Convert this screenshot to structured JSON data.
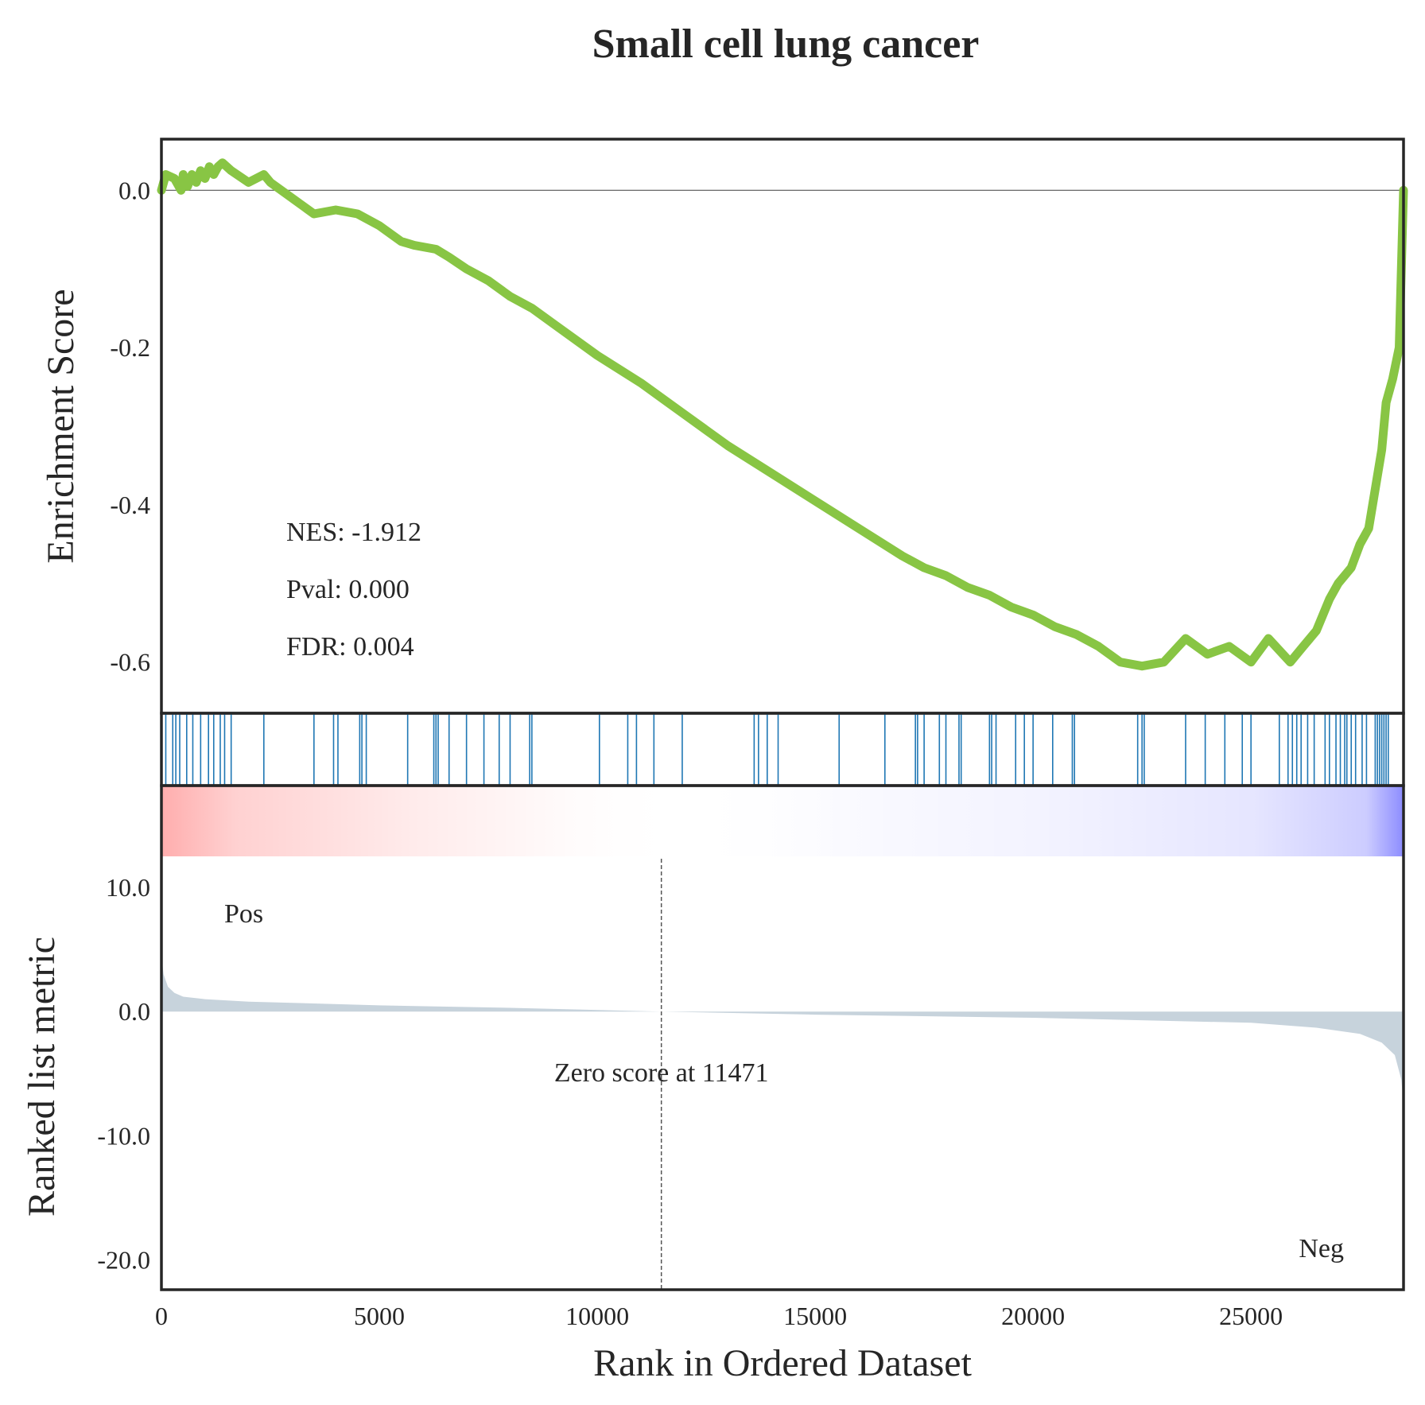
{
  "chart_data": {
    "type": "line",
    "title": "Small cell lung cancer",
    "xlabel": "Rank in Ordered Dataset",
    "es_panel": {
      "ylabel": "Enrichment Score",
      "xlim": [
        0,
        28500
      ],
      "ylim": [
        -0.665,
        0.065
      ],
      "yticks": [
        0.0,
        -0.2,
        -0.4,
        -0.6
      ],
      "ytick_labels": [
        "0.0",
        "-0.2",
        "-0.4",
        "-0.6"
      ],
      "line_color": "#88c544",
      "zero_line": true,
      "series": [
        {
          "x": [
            0,
            100,
            300,
            450,
            500,
            600,
            700,
            800,
            900,
            1000,
            1100,
            1200,
            1300,
            1400,
            1600,
            2000,
            2350,
            2500,
            3000,
            3500,
            4000,
            4500,
            5000,
            5500,
            5800,
            6300,
            6600,
            7000,
            7500,
            8000,
            8500,
            9000,
            10000,
            11000,
            12000,
            13000,
            14000,
            15000,
            16000,
            17000,
            17500,
            18000,
            18500,
            19000,
            19500,
            20000,
            20500,
            21000,
            21500,
            22000,
            22500,
            23000,
            23500,
            24000,
            24500,
            25000,
            25400,
            25900,
            26200,
            26500,
            26800,
            27000,
            27300,
            27500,
            27700,
            27850,
            28000,
            28100,
            28250,
            28400,
            28500
          ],
          "y": [
            0.0,
            0.02,
            0.015,
            0.0,
            0.02,
            0.005,
            0.02,
            0.01,
            0.025,
            0.015,
            0.03,
            0.02,
            0.03,
            0.035,
            0.025,
            0.01,
            0.02,
            0.01,
            -0.01,
            -0.03,
            -0.025,
            -0.03,
            -0.045,
            -0.065,
            -0.07,
            -0.075,
            -0.085,
            -0.1,
            -0.115,
            -0.135,
            -0.15,
            -0.17,
            -0.21,
            -0.245,
            -0.285,
            -0.325,
            -0.36,
            -0.395,
            -0.43,
            -0.465,
            -0.48,
            -0.49,
            -0.505,
            -0.515,
            -0.53,
            -0.54,
            -0.555,
            -0.565,
            -0.58,
            -0.6,
            -0.605,
            -0.6,
            -0.57,
            -0.59,
            -0.58,
            -0.6,
            -0.57,
            -0.6,
            -0.58,
            -0.56,
            -0.52,
            -0.5,
            -0.48,
            -0.45,
            -0.43,
            -0.38,
            -0.33,
            -0.27,
            -0.24,
            -0.2,
            0.0
          ]
        }
      ],
      "annotations": {
        "nes": "NES: -1.912",
        "pval": "Pval: 0.000",
        "fdr": "FDR: 0.004"
      }
    },
    "hits_panel": {
      "hit_color": "#1f77b4",
      "hits": [
        100,
        260,
        330,
        420,
        580,
        720,
        900,
        1080,
        1200,
        1350,
        1450,
        1600,
        2350,
        3500,
        3950,
        4050,
        4550,
        4600,
        4700,
        5650,
        6250,
        6300,
        6350,
        6600,
        7000,
        7400,
        7750,
        8000,
        8450,
        8500,
        10050,
        10700,
        10900,
        11300,
        11950,
        13600,
        13700,
        13900,
        14150,
        15550,
        16600,
        17300,
        17350,
        17500,
        17850,
        18000,
        18300,
        18350,
        19000,
        19050,
        19150,
        19600,
        19800,
        20000,
        20450,
        20900,
        20950,
        22400,
        22500,
        22550,
        23500,
        23950,
        24400,
        24800,
        25000,
        25650,
        25850,
        25950,
        26050,
        26150,
        26300,
        26450,
        26700,
        26800,
        26950,
        27050,
        27150,
        27200,
        27300,
        27400,
        27550,
        27650,
        27850,
        27900,
        27950,
        28000,
        28050,
        28100,
        28150
      ]
    },
    "colorbar": {
      "pos_color": "#ff0000",
      "neg_color": "#0000ff"
    },
    "metric_panel": {
      "ylabel": "Ranked list metric",
      "xlim": [
        0,
        28500
      ],
      "ylim": [
        -22.4,
        18.2
      ],
      "yticks": [
        10.0,
        0.0,
        -10.0,
        -20.0
      ],
      "ytick_labels": [
        "10.0",
        "0.0",
        "-10.0",
        "-20.0"
      ],
      "xticks": [
        0,
        5000,
        10000,
        15000,
        20000,
        25000
      ],
      "xtick_labels": [
        "0",
        "5000",
        "10000",
        "15000",
        "20000",
        "25000"
      ],
      "fill_color": "#c7d3dc",
      "x": [
        0,
        50,
        150,
        300,
        500,
        1000,
        2000,
        5000,
        8000,
        11471,
        15000,
        20000,
        25000,
        26500,
        27500,
        28000,
        28300,
        28450,
        28500
      ],
      "y": [
        4.5,
        3.0,
        2.0,
        1.5,
        1.2,
        1.0,
        0.8,
        0.5,
        0.3,
        0.0,
        -0.25,
        -0.5,
        -0.9,
        -1.3,
        -1.8,
        -2.5,
        -3.5,
        -5.5,
        -7.5
      ],
      "zero_cross": 11471,
      "zero_label": "Zero score at 11471",
      "pos_label": "Pos",
      "neg_label": "Neg",
      "pos_label_color": "#ff0000",
      "neg_label_color": "#0000ff"
    }
  }
}
